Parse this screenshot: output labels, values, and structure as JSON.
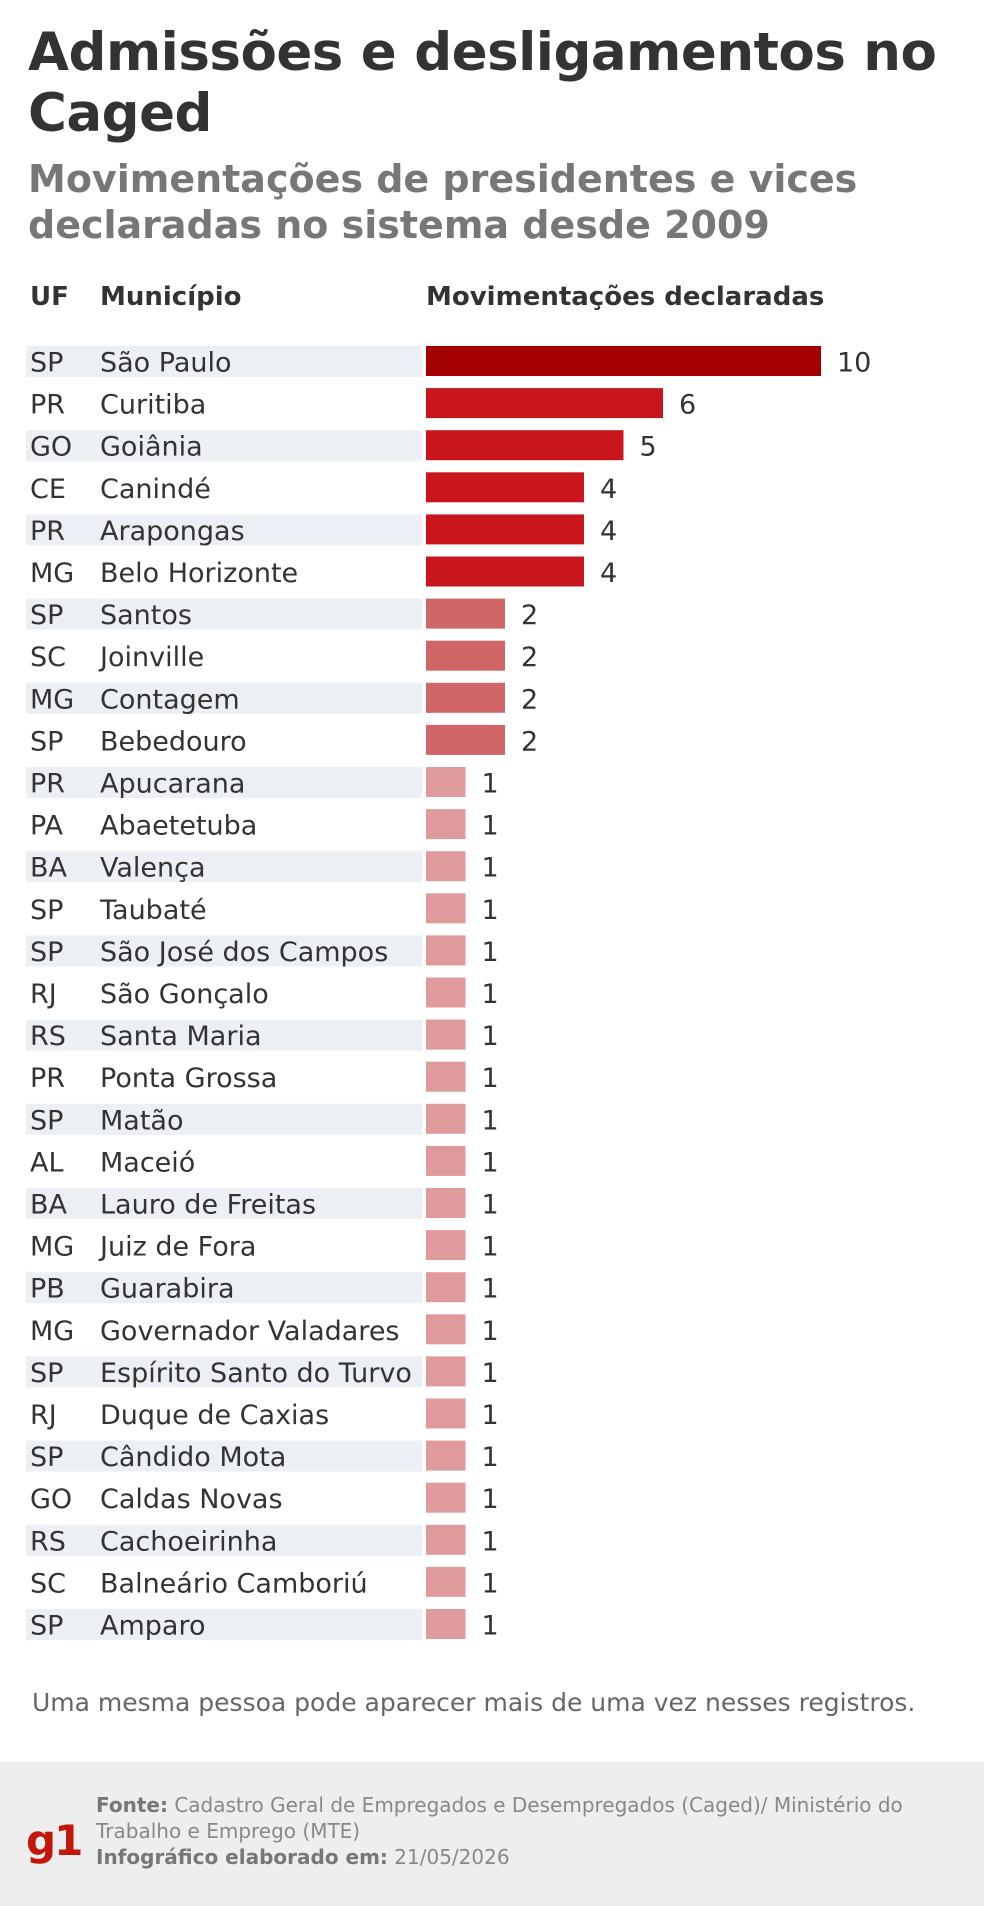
{
  "title": "Admissões e desligamentos no Caged",
  "subtitle": "Movimentações de presidentes e vices declaradas no sistema desde 2009",
  "chart_data": {
    "type": "bar",
    "orientation": "horizontal",
    "headers": {
      "uf": "UF",
      "municipio": "Município",
      "value": "Movimentações declaradas"
    },
    "rows": [
      {
        "uf": "SP",
        "municipio": "São Paulo",
        "value": 10
      },
      {
        "uf": "PR",
        "municipio": "Curitiba",
        "value": 6
      },
      {
        "uf": "GO",
        "municipio": "Goiânia",
        "value": 5
      },
      {
        "uf": "CE",
        "municipio": "Canindé",
        "value": 4
      },
      {
        "uf": "PR",
        "municipio": "Arapongas",
        "value": 4
      },
      {
        "uf": "MG",
        "municipio": "Belo Horizonte",
        "value": 4
      },
      {
        "uf": "SP",
        "municipio": "Santos",
        "value": 2
      },
      {
        "uf": "SC",
        "municipio": "Joinville",
        "value": 2
      },
      {
        "uf": "MG",
        "municipio": "Contagem",
        "value": 2
      },
      {
        "uf": "SP",
        "municipio": "Bebedouro",
        "value": 2
      },
      {
        "uf": "PR",
        "municipio": "Apucarana",
        "value": 1
      },
      {
        "uf": "PA",
        "municipio": "Abaetetuba",
        "value": 1
      },
      {
        "uf": "BA",
        "municipio": "Valença",
        "value": 1
      },
      {
        "uf": "SP",
        "municipio": "Taubaté",
        "value": 1
      },
      {
        "uf": "SP",
        "municipio": "São José dos Campos",
        "value": 1
      },
      {
        "uf": "RJ",
        "municipio": "São Gonçalo",
        "value": 1
      },
      {
        "uf": "RS",
        "municipio": "Santa Maria",
        "value": 1
      },
      {
        "uf": "PR",
        "municipio": "Ponta Grossa",
        "value": 1
      },
      {
        "uf": "SP",
        "municipio": "Matão",
        "value": 1
      },
      {
        "uf": "AL",
        "municipio": "Maceió",
        "value": 1
      },
      {
        "uf": "BA",
        "municipio": "Lauro de Freitas",
        "value": 1
      },
      {
        "uf": "MG",
        "municipio": "Juiz de Fora",
        "value": 1
      },
      {
        "uf": "PB",
        "municipio": "Guarabira",
        "value": 1
      },
      {
        "uf": "MG",
        "municipio": "Governador Valadares",
        "value": 1
      },
      {
        "uf": "SP",
        "municipio": "Espírito Santo do Turvo",
        "value": 1
      },
      {
        "uf": "RJ",
        "municipio": "Duque de Caxias",
        "value": 1
      },
      {
        "uf": "SP",
        "municipio": "Cândido Mota",
        "value": 1
      },
      {
        "uf": "GO",
        "municipio": "Caldas Novas",
        "value": 1
      },
      {
        "uf": "RS",
        "municipio": "Cachoeirinha",
        "value": 1
      },
      {
        "uf": "SC",
        "municipio": "Balneário Camboriú",
        "value": 1
      },
      {
        "uf": "SP",
        "municipio": "Amparo",
        "value": 1
      }
    ],
    "colors": {
      "max": "#a50000",
      "high": "#c8161c",
      "mid": "#cf6566",
      "low": "#df9a9b",
      "stripe": "#eceff3"
    }
  },
  "note": "Uma mesma pessoa pode aparecer mais de uma vez nesses registros.",
  "footer": {
    "logo": "g1",
    "source_label": "Fonte:",
    "source_text": "Cadastro Geral de Empregados e Desempregados (Caged)/ Ministério do Trabalho e Emprego (MTE)",
    "date_label": "Infográfico elaborado em:",
    "date_text": "21/05/2026"
  }
}
